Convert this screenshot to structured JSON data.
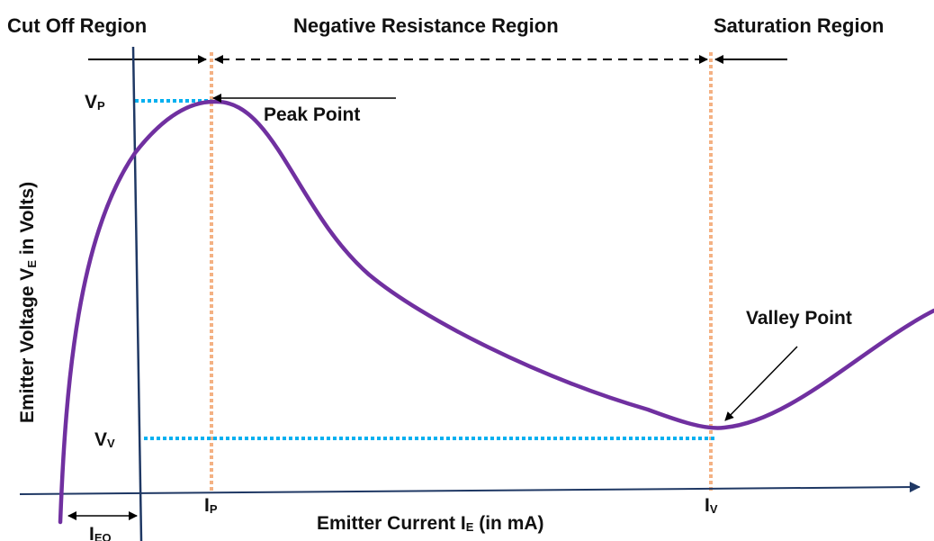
{
  "regions": {
    "cutoff": "Cut Off Region",
    "negative": "Negative Resistance Region",
    "saturation": "Saturation Region"
  },
  "axes": {
    "y_label_main": "Emitter Voltage V",
    "y_label_sub": "E",
    "y_label_tail": " in  Volts)",
    "x_label_main": "Emitter Current I",
    "x_label_sub": "E",
    "x_label_tail": "  (in  mA)"
  },
  "points": {
    "peak": "Peak Point",
    "valley": "Valley Point"
  },
  "symbols": {
    "vp_main": "V",
    "vp_sub": "P",
    "vv_main": "V",
    "vv_sub": "V",
    "ip_main": "I",
    "ip_sub": "P",
    "iv_main": "I",
    "iv_sub": "V",
    "ieo_main": "I",
    "ieo_sub": "EO"
  },
  "colors": {
    "curve": "#7030A0",
    "axis": "#1F3864",
    "guide_vertical": "#F4B183",
    "guide_horizontal": "#00B0F0",
    "arrows": "#000000"
  }
}
